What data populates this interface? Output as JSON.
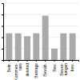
{
  "chart_data": {
    "type": "bar",
    "categories": [
      "Beitr.",
      "Kommen-\ntare",
      "deleted",
      "Beiträge",
      "Bewäh.",
      "Bew.",
      "Bewer-\ntungen",
      "bew."
    ],
    "values": [
      0.47,
      0.47,
      0.42,
      0.47,
      0.78,
      0.2,
      0.47,
      0.47
    ],
    "color": "#aaaaaa",
    "ylim": [
      0,
      1.0
    ],
    "yticks": [
      0.0,
      0.2,
      0.4,
      0.6,
      0.8,
      1.0
    ],
    "grid": true,
    "tick_labels": "x"
  }
}
